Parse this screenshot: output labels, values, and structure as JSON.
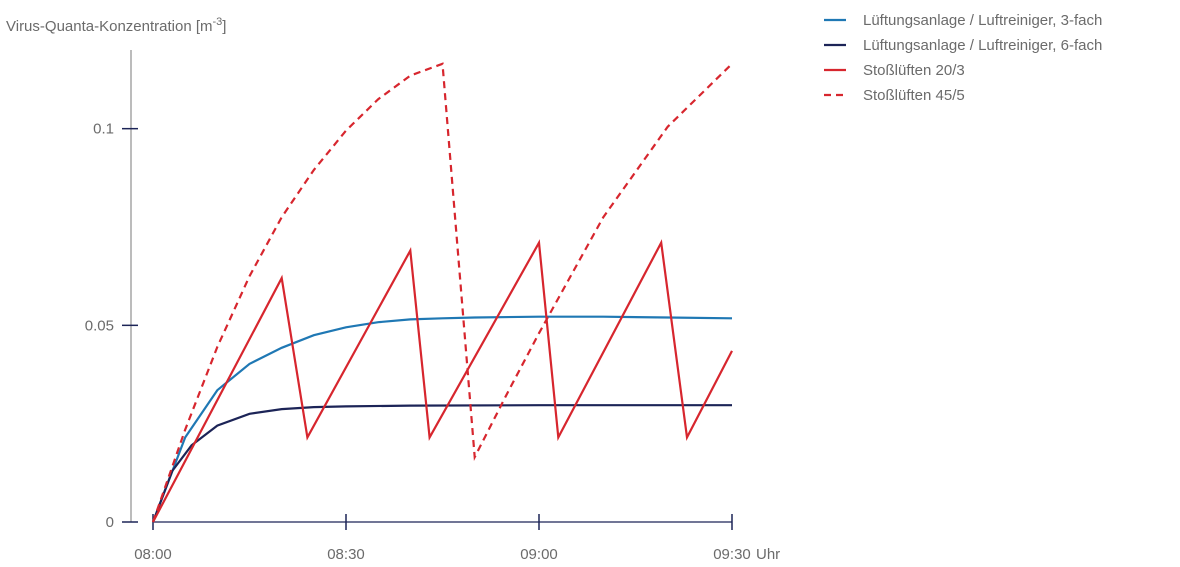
{
  "chart_data": {
    "type": "line",
    "ylabel_base": "Virus-Quanta-Konzentration [m",
    "ylabel_sup": "-3",
    "ylabel_end": "]",
    "xunit": "Uhr",
    "x_ticks": [
      "08:00",
      "08:30",
      "09:00",
      "09:30"
    ],
    "y_ticks": [
      0,
      0.05,
      0.1
    ],
    "y_tick_labels": [
      "0",
      "0.05",
      "0.1"
    ],
    "xlim": [
      "08:00",
      "09:30"
    ],
    "ylim": [
      0,
      0.12
    ],
    "grid": false,
    "legend_position": "top-right",
    "series": [
      {
        "name": "Lüftungsanlage / Luftreiniger, 3-fach",
        "color": "#1f78b4",
        "dash": "solid",
        "points": [
          [
            "08:00",
            0
          ],
          [
            "08:05",
            0.0215
          ],
          [
            "08:10",
            0.0335
          ],
          [
            "08:15",
            0.0402
          ],
          [
            "08:20",
            0.0443
          ],
          [
            "08:25",
            0.0475
          ],
          [
            "08:30",
            0.0495
          ],
          [
            "08:35",
            0.0508
          ],
          [
            "08:40",
            0.0515
          ],
          [
            "08:45",
            0.0518
          ],
          [
            "08:50",
            0.052
          ],
          [
            "09:00",
            0.0522
          ],
          [
            "09:10",
            0.0522
          ],
          [
            "09:20",
            0.052
          ],
          [
            "09:30",
            0.0518
          ]
        ]
      },
      {
        "name": "Lüftungsanlage / Luftreiniger, 6-fach",
        "color": "#1c2457",
        "dash": "solid",
        "points": [
          [
            "08:00",
            0
          ],
          [
            "08:03",
            0.013
          ],
          [
            "08:06",
            0.0195
          ],
          [
            "08:10",
            0.0245
          ],
          [
            "08:15",
            0.0275
          ],
          [
            "08:20",
            0.0287
          ],
          [
            "08:25",
            0.0292
          ],
          [
            "08:30",
            0.0294
          ],
          [
            "08:40",
            0.0296
          ],
          [
            "09:00",
            0.0297
          ],
          [
            "09:30",
            0.0297
          ]
        ]
      },
      {
        "name": "Stoßlüften 20/3",
        "color": "#d7262e",
        "dash": "solid",
        "points": [
          [
            "08:00",
            0
          ],
          [
            "08:20",
            0.062
          ],
          [
            "08:24",
            0.0215
          ],
          [
            "08:40",
            0.069
          ],
          [
            "08:43",
            0.0215
          ],
          [
            "09:00",
            0.071
          ],
          [
            "09:03",
            0.0215
          ],
          [
            "09:19",
            0.071
          ],
          [
            "09:23",
            0.0215
          ],
          [
            "09:30",
            0.0435
          ]
        ]
      },
      {
        "name": "Stoßlüften 45/5",
        "color": "#d7262e",
        "dash": "dashed",
        "points": [
          [
            "08:00",
            0
          ],
          [
            "08:05",
            0.0235
          ],
          [
            "08:10",
            0.0445
          ],
          [
            "08:15",
            0.0625
          ],
          [
            "08:20",
            0.0775
          ],
          [
            "08:25",
            0.0895
          ],
          [
            "08:30",
            0.0995
          ],
          [
            "08:35",
            0.1075
          ],
          [
            "08:40",
            0.1135
          ],
          [
            "08:45",
            0.1165
          ],
          [
            "08:50",
            0.0165
          ],
          [
            "08:55",
            0.0325
          ],
          [
            "09:00",
            0.048
          ],
          [
            "09:10",
            0.0775
          ],
          [
            "09:20",
            0.1005
          ],
          [
            "09:30",
            0.1165
          ]
        ]
      }
    ]
  }
}
